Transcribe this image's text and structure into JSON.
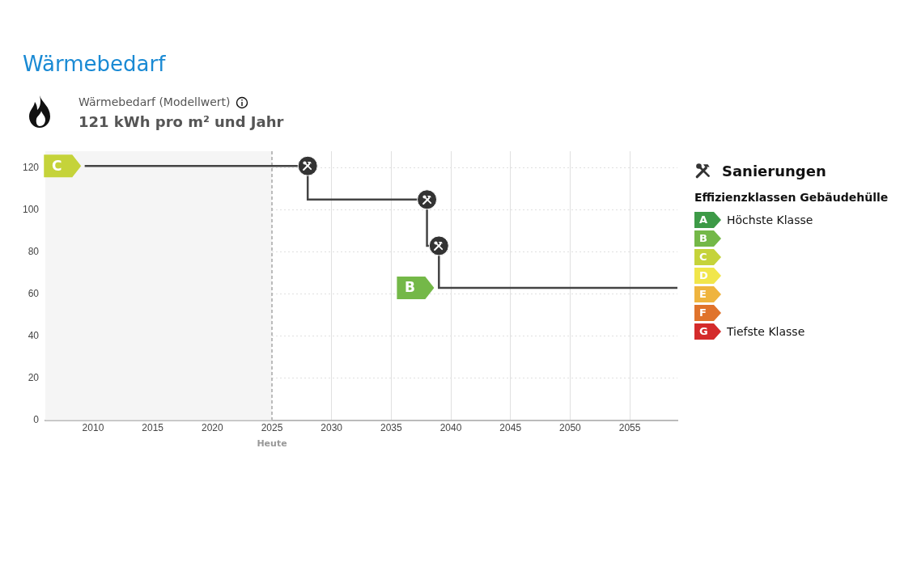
{
  "chart_data": {
    "type": "step",
    "title": "Wärmebedarf",
    "subtitle": "Wärmebedarf (Modellwert)",
    "x": [
      2009.3,
      2028,
      2038,
      2039,
      2059
    ],
    "series": [
      {
        "color": "#444444",
        "values": [
          121,
          105,
          83,
          63,
          63
        ]
      },
      {
        "type": "scatter",
        "name": "Sanierungen",
        "color": "#333333",
        "marker": "circle",
        "x": [
          2028,
          2038,
          2039
        ],
        "values": [
          121,
          105,
          83
        ]
      }
    ],
    "xlim": [
      2006,
      2059
    ],
    "xticks": [
      2010,
      2015,
      2020,
      2025,
      2030,
      2035,
      2040,
      2045,
      2050,
      2055
    ],
    "ylim": [
      0,
      128
    ],
    "yticks": [
      0,
      20,
      40,
      60,
      80,
      100,
      120
    ],
    "grid": true,
    "legend": "right",
    "line_style": "solid",
    "bands": [
      {
        "axis": "x",
        "from": 2006,
        "to": 2025,
        "color": "#f5f5f5"
      }
    ],
    "ref_lines": [
      {
        "axis": "x",
        "value": 2025,
        "label": "Heute",
        "color": "#bbbbbb",
        "line_style": "dashed"
      }
    ],
    "annotations": [
      "121 kWh pro m² und Jahr",
      "Effizienzklassen Gebäudehülle",
      "A",
      "B",
      "C",
      "D",
      "E",
      "F",
      "G",
      "Höchste Klasse",
      "Tiefste Klasse",
      {
        "text": "C",
        "x": 2009,
        "y": 121
      },
      {
        "text": "B",
        "x": 2038.6,
        "y": 63
      }
    ]
  }
}
